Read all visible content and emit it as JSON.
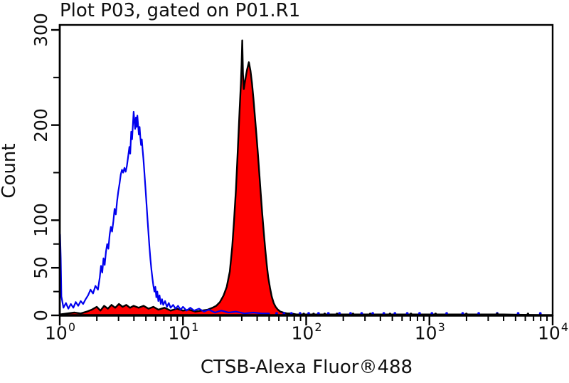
{
  "colors": {
    "background": "#ffffff",
    "axis": "#000000",
    "text": "#101010",
    "control_line": "#0000ee",
    "sample_fill": "#ff0000",
    "sample_outline": "#000000"
  },
  "chart_data": {
    "type": "line",
    "title": "Plot P03, gated on P01.R1",
    "xlabel": "CTSB-Alexa Fluor®488",
    "ylabel": "Count",
    "x_scale": "log10",
    "xlim": [
      1,
      10000
    ],
    "ylim": [
      0,
      300
    ],
    "grid": false,
    "legend": "none",
    "x_ticks": [
      {
        "base": "10",
        "exp": "0"
      },
      {
        "base": "10",
        "exp": "1"
      },
      {
        "base": "10",
        "exp": "2"
      },
      {
        "base": "10",
        "exp": "3"
      },
      {
        "base": "10",
        "exp": "4"
      }
    ],
    "y_axis": {
      "major_ticks": [
        0,
        50,
        100,
        200,
        300
      ],
      "major_labels": [
        "0",
        "50",
        "100",
        "200",
        "300"
      ],
      "minor_ticks": [
        25,
        75,
        150,
        250
      ]
    },
    "series": [
      {
        "name": "control-open-histogram",
        "color": "#0000ee",
        "style": "open",
        "points_log10_count": [
          [
            0.0,
            0
          ],
          [
            0.003,
            85
          ],
          [
            0.008,
            60
          ],
          [
            0.013,
            20
          ],
          [
            0.03,
            8
          ],
          [
            0.05,
            13
          ],
          [
            0.07,
            7
          ],
          [
            0.09,
            12
          ],
          [
            0.11,
            8
          ],
          [
            0.13,
            14
          ],
          [
            0.15,
            10
          ],
          [
            0.17,
            15
          ],
          [
            0.19,
            12
          ],
          [
            0.21,
            17
          ],
          [
            0.23,
            21
          ],
          [
            0.25,
            27
          ],
          [
            0.27,
            23
          ],
          [
            0.29,
            31
          ],
          [
            0.31,
            27
          ],
          [
            0.325,
            40
          ],
          [
            0.335,
            52
          ],
          [
            0.345,
            45
          ],
          [
            0.355,
            60
          ],
          [
            0.365,
            53
          ],
          [
            0.375,
            67
          ],
          [
            0.385,
            75
          ],
          [
            0.395,
            70
          ],
          [
            0.405,
            85
          ],
          [
            0.415,
            93
          ],
          [
            0.425,
            88
          ],
          [
            0.435,
            99
          ],
          [
            0.445,
            112
          ],
          [
            0.455,
            106
          ],
          [
            0.465,
            120
          ],
          [
            0.475,
            130
          ],
          [
            0.485,
            138
          ],
          [
            0.495,
            148
          ],
          [
            0.505,
            153
          ],
          [
            0.515,
            150
          ],
          [
            0.525,
            155
          ],
          [
            0.535,
            151
          ],
          [
            0.545,
            157
          ],
          [
            0.555,
            167
          ],
          [
            0.565,
            177
          ],
          [
            0.572,
            170
          ],
          [
            0.58,
            193
          ],
          [
            0.587,
            185
          ],
          [
            0.594,
            201
          ],
          [
            0.6,
            214
          ],
          [
            0.606,
            204
          ],
          [
            0.612,
            196
          ],
          [
            0.618,
            208
          ],
          [
            0.624,
            198
          ],
          [
            0.63,
            210
          ],
          [
            0.636,
            200
          ],
          [
            0.642,
            190
          ],
          [
            0.648,
            198
          ],
          [
            0.654,
            187
          ],
          [
            0.66,
            179
          ],
          [
            0.666,
            185
          ],
          [
            0.672,
            175
          ],
          [
            0.68,
            163
          ],
          [
            0.688,
            148
          ],
          [
            0.696,
            133
          ],
          [
            0.704,
            117
          ],
          [
            0.712,
            101
          ],
          [
            0.72,
            87
          ],
          [
            0.728,
            72
          ],
          [
            0.736,
            59
          ],
          [
            0.744,
            48
          ],
          [
            0.752,
            39
          ],
          [
            0.76,
            31
          ],
          [
            0.768,
            25
          ],
          [
            0.776,
            30
          ],
          [
            0.784,
            19
          ],
          [
            0.792,
            25
          ],
          [
            0.8,
            15
          ],
          [
            0.81,
            21
          ],
          [
            0.82,
            12
          ],
          [
            0.83,
            17
          ],
          [
            0.84,
            11
          ],
          [
            0.855,
            15
          ],
          [
            0.87,
            9
          ],
          [
            0.885,
            13
          ],
          [
            0.9,
            8
          ],
          [
            0.92,
            11
          ],
          [
            0.94,
            7
          ],
          [
            0.96,
            10
          ],
          [
            0.98,
            6
          ],
          [
            1.0,
            9
          ],
          [
            1.03,
            5
          ],
          [
            1.06,
            8
          ],
          [
            1.09,
            5
          ],
          [
            1.13,
            7
          ],
          [
            1.17,
            4
          ],
          [
            1.21,
            6
          ],
          [
            1.26,
            3
          ],
          [
            1.31,
            5
          ],
          [
            1.37,
            3
          ],
          [
            1.43,
            4
          ],
          [
            1.5,
            2
          ],
          [
            1.57,
            3
          ],
          [
            1.64,
            2
          ],
          [
            1.7,
            2
          ]
        ],
        "baseline_dots_log10": [
          1.76,
          1.82,
          1.88,
          1.95,
          2.02,
          2.1,
          2.18,
          2.27,
          2.36,
          2.45,
          2.54,
          2.63,
          2.72,
          2.82,
          2.92,
          3.02,
          3.14,
          3.27,
          3.4,
          3.55,
          3.72,
          3.9
        ]
      },
      {
        "name": "ctsb-filled-histogram",
        "fill": "#ff0000",
        "stroke": "#000000",
        "style": "filled",
        "points_log10_count": [
          [
            0.0,
            1
          ],
          [
            0.06,
            2
          ],
          [
            0.12,
            3
          ],
          [
            0.17,
            2
          ],
          [
            0.22,
            4
          ],
          [
            0.26,
            6
          ],
          [
            0.3,
            9
          ],
          [
            0.33,
            5
          ],
          [
            0.36,
            10
          ],
          [
            0.39,
            7
          ],
          [
            0.42,
            11
          ],
          [
            0.45,
            8
          ],
          [
            0.48,
            12
          ],
          [
            0.51,
            9
          ],
          [
            0.54,
            11
          ],
          [
            0.57,
            8
          ],
          [
            0.6,
            10
          ],
          [
            0.64,
            8
          ],
          [
            0.68,
            10
          ],
          [
            0.72,
            7
          ],
          [
            0.76,
            9
          ],
          [
            0.8,
            6
          ],
          [
            0.85,
            8
          ],
          [
            0.9,
            5
          ],
          [
            0.95,
            7
          ],
          [
            1.0,
            5
          ],
          [
            1.05,
            6
          ],
          [
            1.1,
            4
          ],
          [
            1.15,
            5
          ],
          [
            1.2,
            6
          ],
          [
            1.24,
            8
          ],
          [
            1.27,
            10
          ],
          [
            1.3,
            14
          ],
          [
            1.33,
            21
          ],
          [
            1.355,
            30
          ],
          [
            1.38,
            46
          ],
          [
            1.4,
            72
          ],
          [
            1.415,
            100
          ],
          [
            1.43,
            132
          ],
          [
            1.44,
            160
          ],
          [
            1.45,
            188
          ],
          [
            1.46,
            216
          ],
          [
            1.47,
            244
          ],
          [
            1.476,
            264
          ],
          [
            1.481,
            289
          ],
          [
            1.487,
            254
          ],
          [
            1.494,
            238
          ],
          [
            1.505,
            247
          ],
          [
            1.52,
            258
          ],
          [
            1.535,
            266
          ],
          [
            1.548,
            257
          ],
          [
            1.56,
            244
          ],
          [
            1.572,
            228
          ],
          [
            1.584,
            209
          ],
          [
            1.596,
            190
          ],
          [
            1.608,
            170
          ],
          [
            1.62,
            148
          ],
          [
            1.632,
            127
          ],
          [
            1.644,
            106
          ],
          [
            1.656,
            87
          ],
          [
            1.668,
            69
          ],
          [
            1.68,
            53
          ],
          [
            1.692,
            40
          ],
          [
            1.706,
            29
          ],
          [
            1.72,
            20
          ],
          [
            1.736,
            13
          ],
          [
            1.752,
            9
          ],
          [
            1.77,
            6
          ],
          [
            1.79,
            4
          ],
          [
            1.815,
            3
          ],
          [
            1.845,
            2
          ],
          [
            1.88,
            2
          ],
          [
            1.92,
            1
          ],
          [
            1.96,
            1
          ],
          [
            2.0,
            1
          ],
          [
            2.1,
            1
          ],
          [
            2.25,
            1
          ],
          [
            2.4,
            1
          ],
          [
            2.6,
            1
          ],
          [
            2.8,
            1
          ],
          [
            3.0,
            1
          ],
          [
            3.3,
            1
          ],
          [
            3.6,
            1
          ],
          [
            4.0,
            0
          ]
        ],
        "baseline_dots_log10": [
          1.98,
          2.06,
          2.15,
          2.25,
          2.38,
          2.52,
          2.68,
          2.85,
          3.05,
          3.3,
          3.55,
          3.8
        ]
      }
    ],
    "annotations": {
      "control_peak": {
        "x": 4,
        "count": 214
      },
      "sample_peak": {
        "x": 30,
        "count": 289
      }
    }
  }
}
